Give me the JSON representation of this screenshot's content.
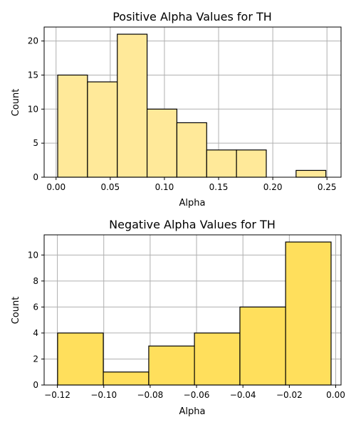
{
  "chart_data": [
    {
      "type": "bar",
      "title": "Positive Alpha Values for TH",
      "xlabel": "Alpha",
      "ylabel": "Count",
      "bar_color": "#ffe999",
      "grid": true,
      "xlim": [
        -0.011,
        0.263
      ],
      "ylim": [
        0,
        22.05
      ],
      "xticks": [
        0.0,
        0.05,
        0.1,
        0.15,
        0.2,
        0.25
      ],
      "xtick_labels": [
        "0.00",
        "0.05",
        "0.10",
        "0.15",
        "0.20",
        "0.25"
      ],
      "yticks": [
        0,
        5,
        10,
        15,
        20
      ],
      "ytick_labels": [
        "0",
        "5",
        "10",
        "15",
        "20"
      ],
      "bins": [
        {
          "x0": 0.0015,
          "x1": 0.029,
          "count": 15
        },
        {
          "x0": 0.029,
          "x1": 0.0565,
          "count": 14
        },
        {
          "x0": 0.0565,
          "x1": 0.084,
          "count": 21
        },
        {
          "x0": 0.084,
          "x1": 0.1115,
          "count": 10
        },
        {
          "x0": 0.1115,
          "x1": 0.139,
          "count": 8
        },
        {
          "x0": 0.139,
          "x1": 0.1665,
          "count": 4
        },
        {
          "x0": 0.1665,
          "x1": 0.194,
          "count": 4
        },
        {
          "x0": 0.194,
          "x1": 0.2215,
          "count": 0
        },
        {
          "x0": 0.2215,
          "x1": 0.249,
          "count": 1
        }
      ]
    },
    {
      "type": "bar",
      "title": "Negative Alpha Values for TH",
      "xlabel": "Alpha",
      "ylabel": "Count",
      "bar_color": "#ffdf5c",
      "grid": true,
      "xlim": [
        -0.1257,
        0.0023
      ],
      "ylim": [
        0,
        11.55
      ],
      "xticks": [
        -0.12,
        -0.1,
        -0.08,
        -0.06,
        -0.04,
        -0.02,
        0.0
      ],
      "xtick_labels": [
        "−0.12",
        "−0.10",
        "−0.08",
        "−0.06",
        "−0.04",
        "−0.02",
        "0.00"
      ],
      "yticks": [
        0,
        2,
        4,
        6,
        8,
        10
      ],
      "ytick_labels": [
        "0",
        "2",
        "4",
        "6",
        "8",
        "10"
      ],
      "bins": [
        {
          "x0": -0.1199,
          "x1": -0.1002,
          "count": 4
        },
        {
          "x0": -0.1002,
          "x1": -0.0806,
          "count": 1
        },
        {
          "x0": -0.0806,
          "x1": -0.0609,
          "count": 3
        },
        {
          "x0": -0.0609,
          "x1": -0.0413,
          "count": 4
        },
        {
          "x0": -0.0413,
          "x1": -0.0216,
          "count": 6
        },
        {
          "x0": -0.0216,
          "x1": -0.002,
          "count": 11
        }
      ]
    }
  ]
}
